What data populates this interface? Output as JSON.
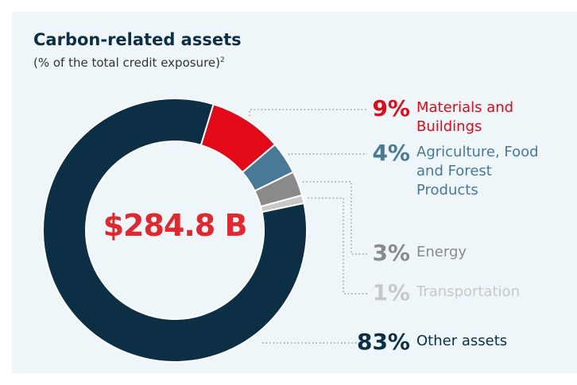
{
  "chart_data": {
    "type": "donut",
    "title": "Carbon-related assets",
    "subtitle": "(% of the total credit exposure)",
    "subtitle_note": "2",
    "center_label": "$284.8 B",
    "categories": [
      "Materials and Buildings",
      "Agriculture, Food and Forest Products",
      "Energy",
      "Transportation",
      "Other assets"
    ],
    "values": [
      9,
      4,
      3,
      1,
      83
    ],
    "value_labels": [
      "9%",
      "4%",
      "3%",
      "1%",
      "83%"
    ],
    "colors": [
      "#e30a17",
      "#487a97",
      "#8a8a8a",
      "#c8c8c8",
      "#0c2f45"
    ]
  }
}
